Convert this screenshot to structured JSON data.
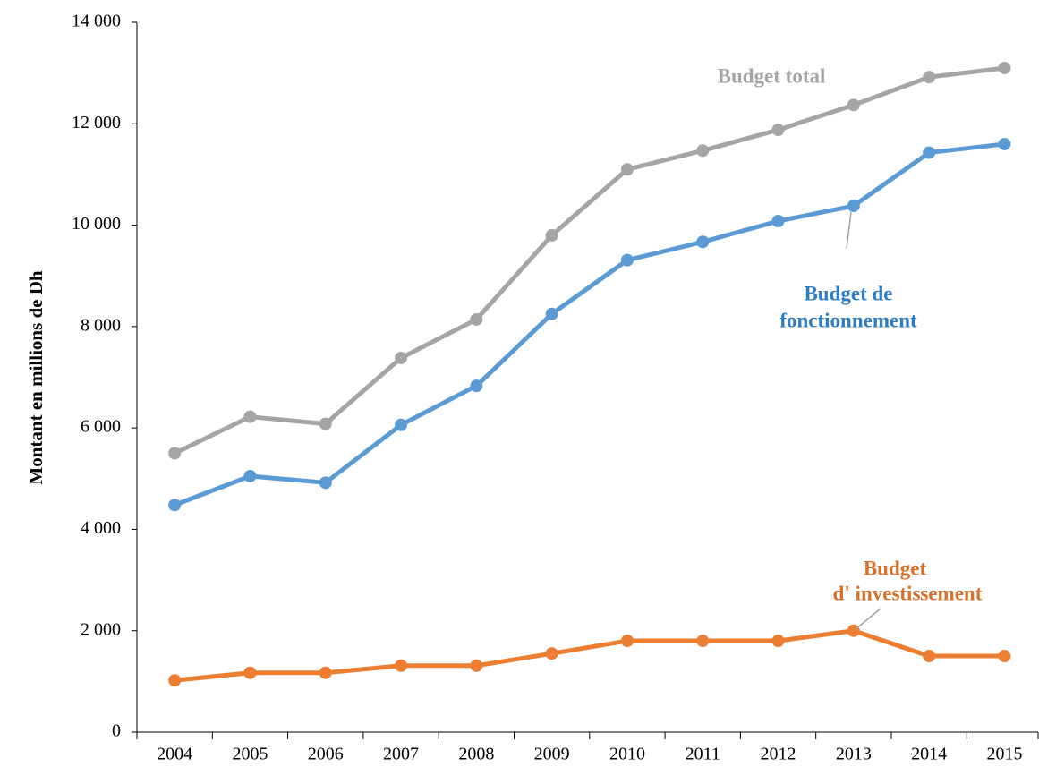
{
  "chart_data": {
    "type": "line",
    "y_label": "Montant en millions de Dh",
    "categories": [
      "2004",
      "2005",
      "2006",
      "2007",
      "2008",
      "2009",
      "2010",
      "2011",
      "2012",
      "2013",
      "2014",
      "2015"
    ],
    "series": [
      {
        "name": "Budget total",
        "color": "#a5a5a5",
        "values": [
          5500,
          6220,
          6080,
          7380,
          8140,
          9800,
          11100,
          11470,
          11880,
          12370,
          12920,
          13100
        ]
      },
      {
        "name": "Budget de fonctionnement",
        "color": "#5b9bd5",
        "values": [
          4480,
          5050,
          4920,
          6060,
          6830,
          8250,
          9310,
          9670,
          10080,
          10380,
          11430,
          11600
        ]
      },
      {
        "name": "Budget d' investissement",
        "color": "#ed7d31",
        "values": [
          1020,
          1170,
          1170,
          1310,
          1310,
          1550,
          1800,
          1800,
          1800,
          2000,
          1500,
          1500
        ]
      }
    ],
    "annotations": [
      {
        "lines": [
          "Budget total"
        ],
        "color": "#a5a5a5"
      },
      {
        "lines": [
          "Budget de",
          "fonctionnement"
        ],
        "color": "#2e7dc4"
      },
      {
        "lines": [
          "Budget",
          "d' investissement"
        ],
        "color": "#d9702c"
      }
    ],
    "ylim": [
      0,
      14000
    ],
    "yticks": [
      {
        "value": 0,
        "label": "0"
      },
      {
        "value": 2000,
        "label": "2 000"
      },
      {
        "value": 4000,
        "label": "4 000"
      },
      {
        "value": 6000,
        "label": "6 000"
      },
      {
        "value": 8000,
        "label": "8 000"
      },
      {
        "value": 10000,
        "label": "10 000"
      },
      {
        "value": 12000,
        "label": "12 000"
      },
      {
        "value": 14000,
        "label": "14 000"
      }
    ],
    "grid": false
  }
}
